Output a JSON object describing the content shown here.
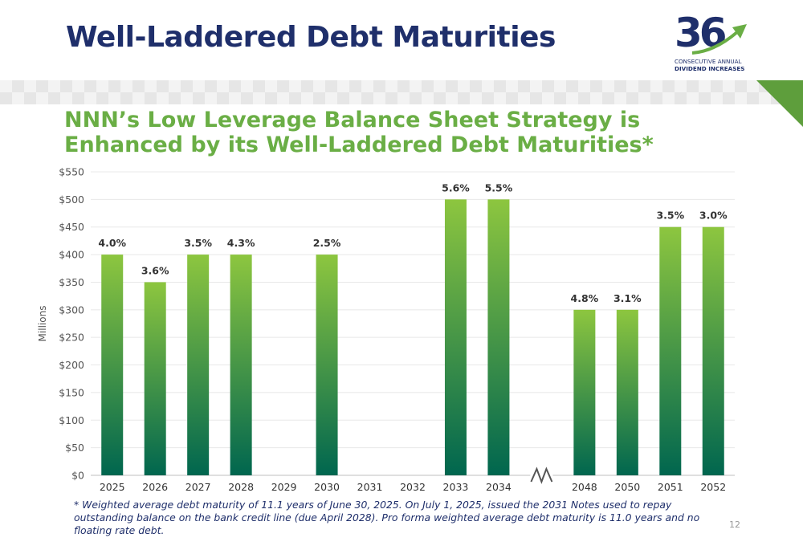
{
  "slide": {
    "title": "Well-Laddered Debt Maturities",
    "subtitle": "NNN’s Low Leverage Balance Sheet Strategy is Enhanced by its Well-Laddered Debt Maturities*",
    "footnote": "* Weighted average debt maturity of 11.1 years of June 30, 2025. On July 1, 2025, issued the 2031 Notes used to repay outstanding balance on the bank credit line (due April 2028). Pro forma weighted average debt maturity is 11.0 years and no floating rate debt.",
    "page_number": "12"
  },
  "logo": {
    "number": "36",
    "line1": "CONSECUTIVE ANNUAL",
    "line2": "DIVIDEND INCREASES"
  },
  "colors": {
    "title": "#1f2f6b",
    "subtitle": "#6aae45",
    "bar_top": "#8dc63f",
    "bar_bottom": "#00664f",
    "logo_arrow": "#6aae45"
  },
  "chart_data": {
    "type": "bar",
    "ylabel": "Millions",
    "ylim": [
      0,
      550
    ],
    "yticks": [
      "$0",
      "$50",
      "$100",
      "$150",
      "$200",
      "$250",
      "$300",
      "$350",
      "$400",
      "$450",
      "$500",
      "$550"
    ],
    "categories": [
      "2025",
      "2026",
      "2027",
      "2028",
      "2029",
      "2030",
      "2031",
      "2032",
      "2033",
      "2034",
      "2048",
      "2050",
      "2051",
      "2052"
    ],
    "values": [
      400,
      350,
      400,
      400,
      0,
      400,
      0,
      0,
      500,
      500,
      300,
      300,
      450,
      450
    ],
    "data_labels": [
      "4.0%",
      "3.6%",
      "3.5%",
      "4.3%",
      "",
      "2.5%",
      "",
      "",
      "5.6%",
      "5.5%",
      "4.8%",
      "3.1%",
      "3.5%",
      "3.0%"
    ],
    "axis_break_after": "2034",
    "grid": true
  }
}
